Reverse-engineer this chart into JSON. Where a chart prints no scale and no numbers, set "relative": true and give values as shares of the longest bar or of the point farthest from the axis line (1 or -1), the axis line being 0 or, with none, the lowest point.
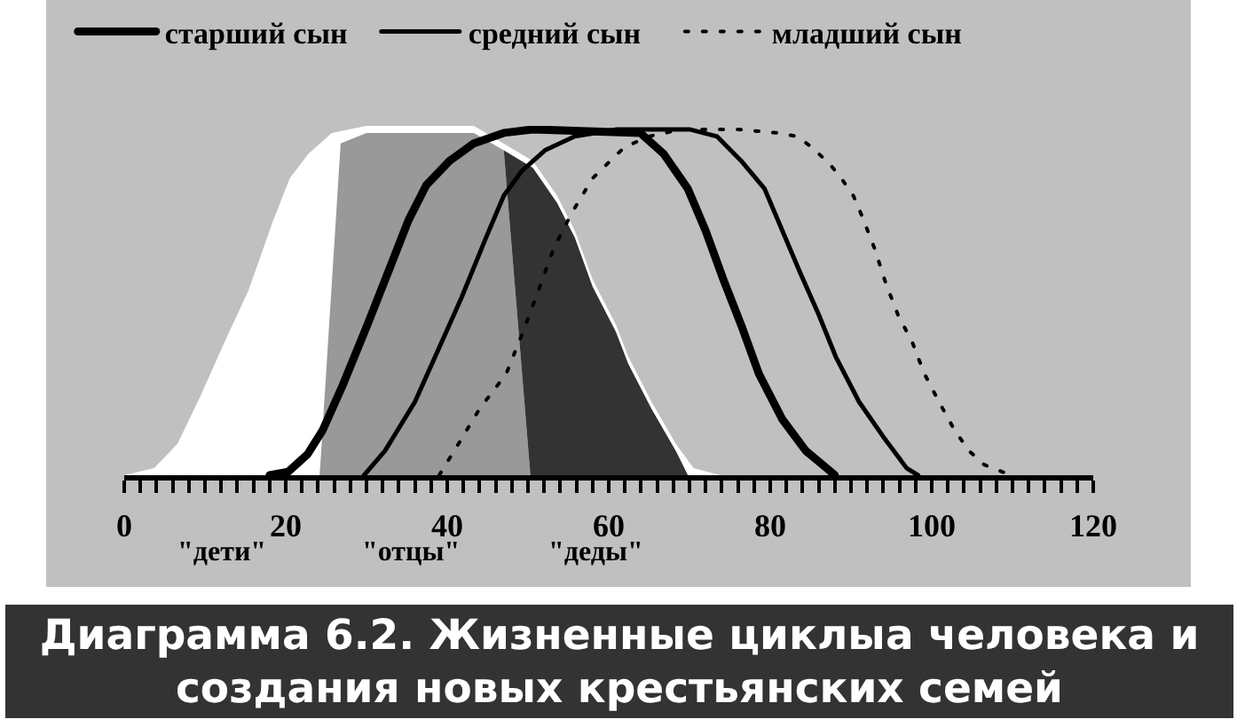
{
  "chart_data": {
    "type": "line",
    "title": "Диаграмма 6.2. Жизненные циклыа человека и создания новых крестьянских семей",
    "relative": true,
    "tick_labels": "x",
    "legend": "top",
    "line_style": "solid",
    "xlim": [
      0,
      120
    ],
    "xticks": [
      0,
      {
        "value": 2,
        "label": null
      },
      {
        "value": 4,
        "label": null
      },
      {
        "value": 6,
        "label": null
      },
      {
        "value": 8,
        "label": null
      },
      {
        "value": 10,
        "label": null
      },
      {
        "value": 12,
        "label": null
      },
      {
        "value": 14,
        "label": null
      },
      {
        "value": 16,
        "label": null
      },
      {
        "value": 18,
        "label": null
      },
      20,
      {
        "value": 22,
        "label": null
      },
      {
        "value": 24,
        "label": null
      },
      {
        "value": 26,
        "label": null
      },
      {
        "value": 28,
        "label": null
      },
      {
        "value": 30,
        "label": null
      },
      {
        "value": 32,
        "label": null
      },
      {
        "value": 34,
        "label": null
      },
      {
        "value": 36,
        "label": null
      },
      {
        "value": 38,
        "label": null
      },
      40,
      {
        "value": 42,
        "label": null
      },
      {
        "value": 44,
        "label": null
      },
      {
        "value": 46,
        "label": null
      },
      {
        "value": 48,
        "label": null
      },
      {
        "value": 50,
        "label": null
      },
      {
        "value": 52,
        "label": null
      },
      {
        "value": 54,
        "label": null
      },
      {
        "value": 56,
        "label": null
      },
      {
        "value": 58,
        "label": null
      },
      60,
      {
        "value": 62,
        "label": null
      },
      {
        "value": 64,
        "label": null
      },
      {
        "value": 66,
        "label": null
      },
      {
        "value": 68,
        "label": null
      },
      {
        "value": 70,
        "label": null
      },
      {
        "value": 72,
        "label": null
      },
      {
        "value": 74,
        "label": null
      },
      {
        "value": 76,
        "label": null
      },
      {
        "value": 78,
        "label": null
      },
      80,
      {
        "value": 82,
        "label": null
      },
      {
        "value": 84,
        "label": null
      },
      {
        "value": 86,
        "label": null
      },
      {
        "value": 88,
        "label": null
      },
      {
        "value": 90,
        "label": null
      },
      {
        "value": 92,
        "label": null
      },
      {
        "value": 94,
        "label": null
      },
      {
        "value": 96,
        "label": null
      },
      {
        "value": 98,
        "label": null
      },
      100,
      {
        "value": 102,
        "label": null
      },
      {
        "value": 104,
        "label": null
      },
      {
        "value": 106,
        "label": null
      },
      {
        "value": 108,
        "label": null
      },
      {
        "value": 110,
        "label": null
      },
      {
        "value": 112,
        "label": null
      },
      {
        "value": 114,
        "label": null
      },
      {
        "value": 116,
        "label": null
      },
      {
        "value": 118,
        "label": null
      },
      120
    ],
    "series": [
      {
        "type": "area",
        "color": "#ffffff",
        "x": [
          0,
          3.7,
          6.6,
          9.5,
          12.4,
          15.4,
          18.3,
          20.5,
          22.8,
          25.7,
          30,
          43.3,
          50.6,
          53.6,
          55.8,
          58,
          60.9,
          62.4,
          65.3,
          68.3,
          70.5,
          73.8
        ],
        "values": [
          0,
          0.02,
          0.09,
          0.23,
          0.38,
          0.53,
          0.72,
          0.85,
          0.92,
          0.98,
          1,
          1,
          0.9,
          0.8,
          0.7,
          0.56,
          0.43,
          0.34,
          0.21,
          0.09,
          0.02,
          0
        ]
      },
      {
        "type": "area",
        "color": "#999999",
        "x": [
          24.2,
          26.8,
          30,
          43.3,
          47,
          50.3
        ],
        "values": [
          0,
          0.95,
          0.98,
          0.98,
          0.93,
          0
        ]
      },
      {
        "type": "area",
        "color": "#333333",
        "x": [
          50.3,
          47,
          50.6,
          53.6,
          55.8,
          58,
          60.9,
          62.4,
          65.3,
          68.3,
          69.8
        ],
        "values": [
          0,
          0.93,
          0.88,
          0.78,
          0.68,
          0.54,
          0.41,
          0.32,
          0.19,
          0.07,
          0
        ]
      },
      {
        "name": "старший сын",
        "color": "#000000",
        "x": [
          18,
          20.3,
          22.7,
          24.6,
          27.1,
          30.1,
          33,
          35.2,
          37.4,
          40.3,
          43.3,
          47,
          50.6,
          63.9,
          66.8,
          69.8,
          72,
          74.2,
          76.4,
          78.6,
          81.5,
          84.4,
          87,
          88
        ],
        "values": [
          0,
          0.01,
          0.06,
          0.13,
          0.26,
          0.43,
          0.6,
          0.73,
          0.83,
          0.9,
          0.95,
          0.98,
          0.99,
          0.98,
          0.92,
          0.82,
          0.7,
          0.56,
          0.43,
          0.29,
          0.16,
          0.07,
          0.02,
          0
        ]
      },
      {
        "name": "средний сын",
        "color": "#000000",
        "x": [
          29.7,
          32.3,
          36,
          38.9,
          41.8,
          44.8,
          47,
          49.2,
          52.1,
          55.8,
          61,
          70,
          73.4,
          76.4,
          79.3,
          81.5,
          83.7,
          86,
          88.1,
          91,
          94,
          96.9,
          98.3
        ],
        "values": [
          0,
          0.07,
          0.21,
          0.36,
          0.51,
          0.68,
          0.8,
          0.87,
          0.93,
          0.97,
          0.99,
          0.99,
          0.97,
          0.9,
          0.82,
          0.7,
          0.58,
          0.46,
          0.34,
          0.21,
          0.11,
          0.02,
          0
        ]
      },
      {
        "name": "младший сын",
        "color": "#000000",
        "line_style": "dotted",
        "x": [
          39,
          41.4,
          44,
          47.3,
          49.2,
          51,
          53.2,
          55.4,
          58,
          60.2,
          62,
          65,
          69,
          76,
          80.8,
          83.3,
          85.1,
          87.4,
          88.8,
          90.3,
          91.4,
          92.9,
          94.3,
          95.8,
          97.6,
          99.1,
          100.9,
          102.8,
          104.6,
          106.5,
          108.7,
          110
        ],
        "values": [
          0,
          0.09,
          0.19,
          0.29,
          0.4,
          0.51,
          0.65,
          0.75,
          0.85,
          0.9,
          0.94,
          0.97,
          0.99,
          0.99,
          0.98,
          0.97,
          0.94,
          0.89,
          0.85,
          0.8,
          0.74,
          0.65,
          0.55,
          0.46,
          0.38,
          0.29,
          0.21,
          0.13,
          0.07,
          0.03,
          0.01,
          0
        ]
      }
    ],
    "annotations": [
      "\"дети\"",
      "\"отцы\"",
      "\"деды\""
    ]
  }
}
